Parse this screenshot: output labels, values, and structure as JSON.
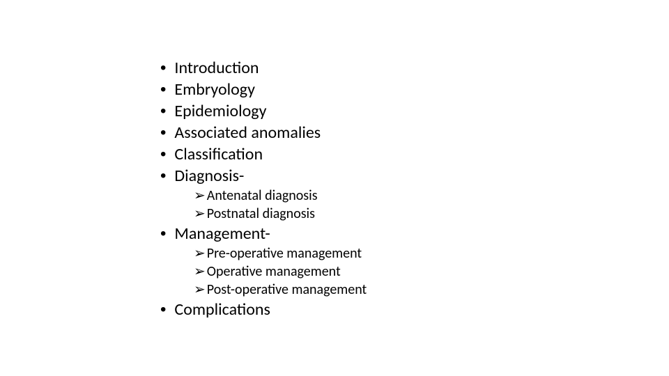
{
  "slide": {
    "background_color": "#ffffff",
    "text_color": "#000000",
    "main_fontsize": 24,
    "sub_fontsize": 20,
    "font_family": "Calibri",
    "bullet_char": "•",
    "sub_bullet_char": "➢",
    "items": [
      {
        "text": "Introduction",
        "sub": []
      },
      {
        "text": "Embryology",
        "sub": []
      },
      {
        "text": "Epidemiology",
        "sub": []
      },
      {
        "text": "Associated anomalies",
        "sub": []
      },
      {
        "text": "Classification",
        "sub": []
      },
      {
        "text": "Diagnosis-",
        "sub": [
          "Antenatal diagnosis",
          "Postnatal diagnosis"
        ]
      },
      {
        "text": "Management-",
        "sub": [
          "Pre-operative management",
          "Operative management",
          "Post-operative management"
        ]
      },
      {
        "text": "Complications",
        "sub": []
      }
    ]
  }
}
